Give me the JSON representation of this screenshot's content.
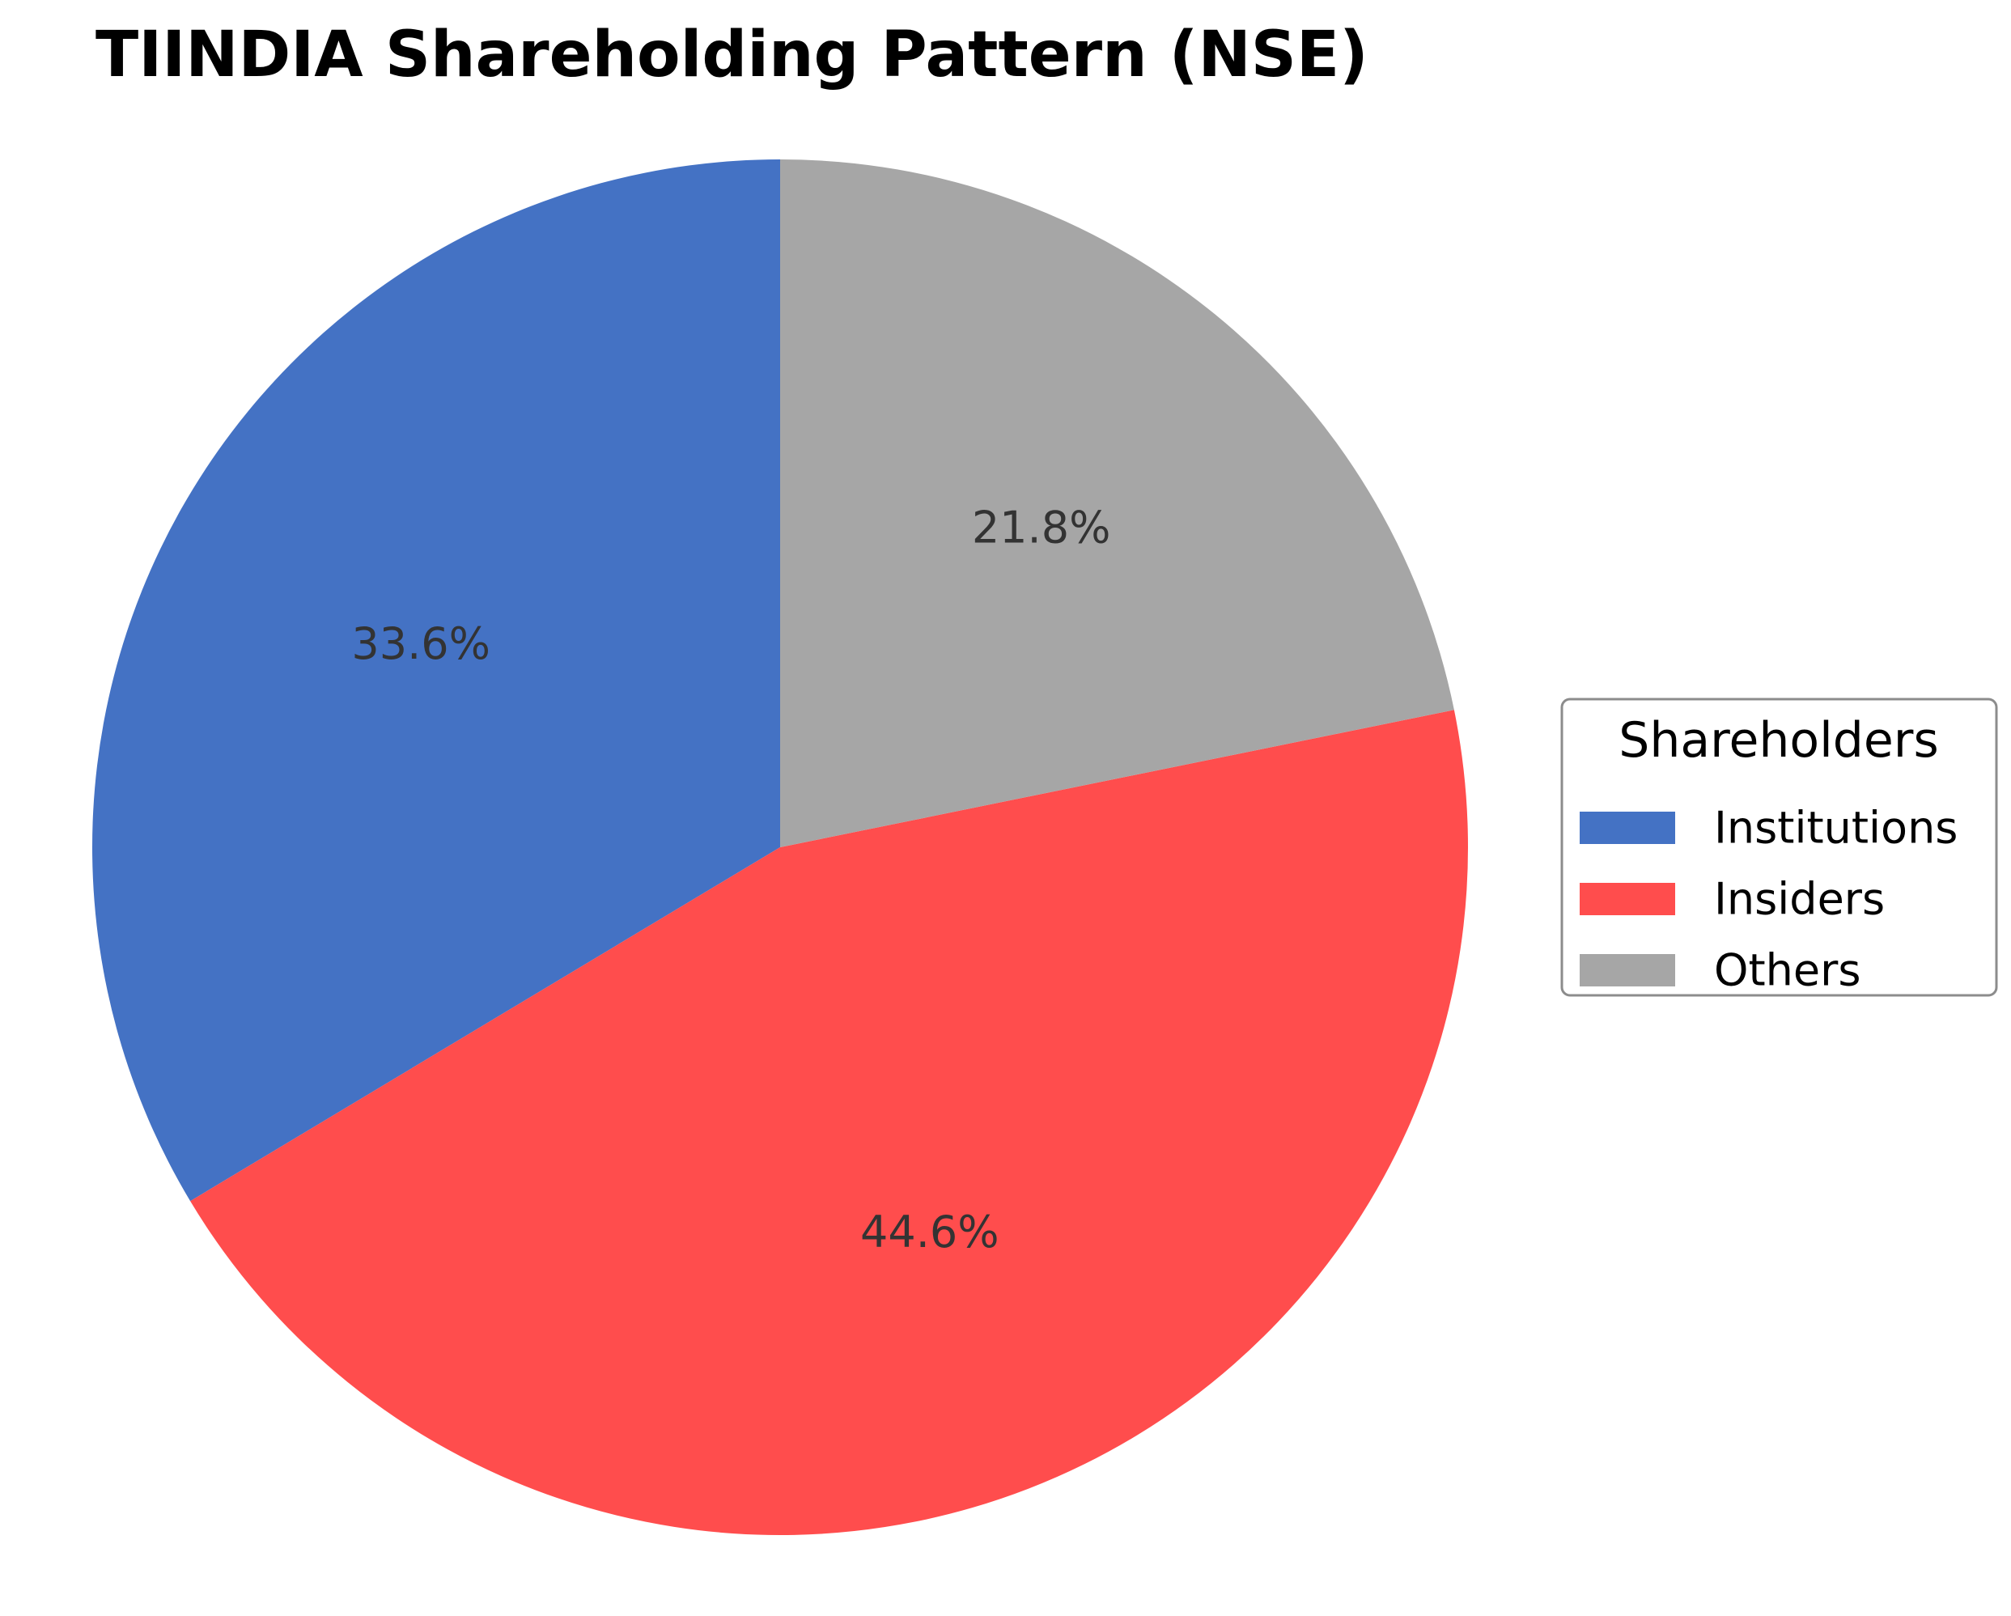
{
  "chart_data": {
    "type": "pie",
    "title": "TIINDIA Shareholding Pattern (NSE)",
    "categories": [
      "Institutions",
      "Insiders",
      "Others"
    ],
    "values": [
      33.6,
      44.6,
      21.8
    ],
    "value_labels": [
      "33.6%",
      "44.6%",
      "21.8%"
    ],
    "colors": [
      "#4472C4",
      "#FF4D4D",
      "#A6A6A6"
    ],
    "start_angle_deg": 90,
    "direction": "counterclockwise",
    "legend": {
      "title": "Shareholders",
      "placement": "center-right",
      "items": [
        "Institutions",
        "Insiders",
        "Others"
      ]
    }
  }
}
